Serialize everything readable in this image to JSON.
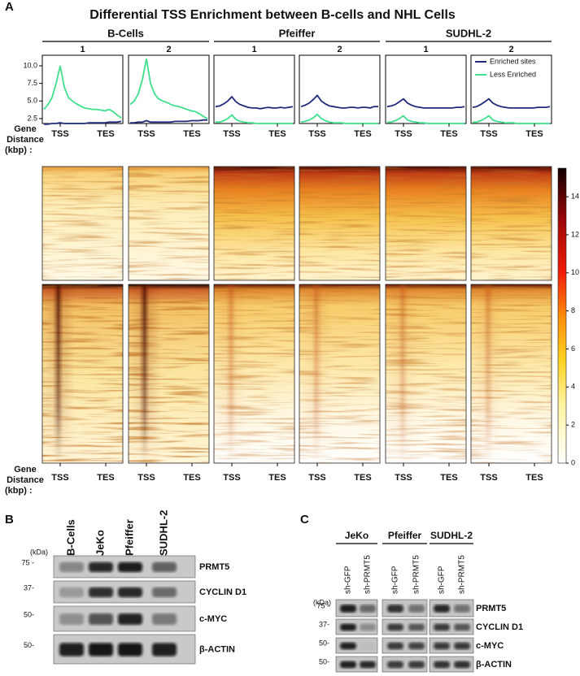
{
  "panel_a": {
    "label": "A",
    "title": "Differential TSS Enrichment between B-cells and NHL Cells",
    "groups": [
      {
        "name": "B-Cells",
        "replicates": [
          "1",
          "2"
        ]
      },
      {
        "name": "Pfeiffer",
        "replicates": [
          "1",
          "2"
        ]
      },
      {
        "name": "SUDHL-2",
        "replicates": [
          "1",
          "2"
        ]
      }
    ],
    "gene_distance_label": [
      "Gene",
      "Distance",
      "(kbp) :"
    ],
    "x_labels": [
      "TSS",
      "TES"
    ],
    "profile_axis": {
      "ylim": [
        1.8,
        11.5
      ],
      "yticks": [
        {
          "value": 10,
          "label": "10.0"
        },
        7.5,
        {
          "value": 5,
          "label": "5.0"
        },
        2.5
      ]
    },
    "legend": [
      {
        "name": "Enriched sites",
        "color": "#1f2a7a"
      },
      {
        "name": "Less Enriched",
        "color": "#3fe08c"
      }
    ],
    "profiles": [
      {
        "series": [
          {
            "values": [
              1.7,
              1.7,
              1.8,
              1.8,
              1.9,
              1.8,
              1.8,
              1.8,
              1.8,
              1.8,
              1.8,
              1.9,
              1.9,
              1.9,
              1.9,
              1.9,
              2.0,
              2.0,
              2.0,
              2.1
            ]
          },
          {
            "values": [
              3.8,
              4.5,
              5.5,
              7.5,
              10.0,
              7.0,
              5.5,
              5.0,
              4.6,
              4.3,
              4.0,
              3.9,
              3.8,
              3.8,
              3.7,
              3.6,
              3.8,
              3.5,
              3.0,
              2.6
            ]
          }
        ]
      },
      {
        "series": [
          {
            "values": [
              1.9,
              1.9,
              2.0,
              2.0,
              2.2,
              2.0,
              2.0,
              2.0,
              2.0,
              2.0,
              2.0,
              2.1,
              2.1,
              2.1,
              2.1,
              2.2,
              2.2,
              2.2,
              2.3,
              2.3
            ]
          },
          {
            "values": [
              4.5,
              5.0,
              6.0,
              8.0,
              11.0,
              7.5,
              6.0,
              5.3,
              5.0,
              4.8,
              4.5,
              4.3,
              4.2,
              4.0,
              3.8,
              3.6,
              3.5,
              3.2,
              2.8,
              2.5
            ]
          }
        ]
      },
      {
        "series": [
          {
            "values": [
              4.2,
              4.3,
              4.6,
              5.0,
              5.6,
              4.9,
              4.5,
              4.3,
              4.1,
              4.0,
              4.0,
              3.9,
              4.0,
              4.1,
              4.0,
              4.0,
              4.1,
              4.0,
              4.1,
              4.2
            ]
          },
          {
            "values": [
              2.0,
              2.0,
              2.2,
              2.5,
              3.0,
              2.4,
              2.1,
              2.0,
              1.9,
              1.9,
              1.8,
              1.8,
              1.8,
              1.8,
              1.8,
              1.8,
              1.8,
              1.8,
              1.8,
              1.8
            ]
          }
        ]
      },
      {
        "series": [
          {
            "values": [
              4.2,
              4.4,
              4.7,
              5.2,
              5.8,
              5.0,
              4.6,
              4.3,
              4.2,
              4.1,
              4.0,
              4.0,
              4.1,
              4.1,
              4.0,
              4.1,
              4.1,
              4.0,
              4.2,
              4.2
            ]
          },
          {
            "values": [
              2.0,
              2.1,
              2.3,
              2.6,
              3.1,
              2.5,
              2.2,
              2.0,
              1.9,
              1.9,
              1.9,
              1.8,
              1.8,
              1.8,
              1.8,
              1.8,
              1.8,
              1.8,
              1.8,
              1.8
            ]
          }
        ]
      },
      {
        "series": [
          {
            "values": [
              4.2,
              4.3,
              4.5,
              4.9,
              5.3,
              4.7,
              4.4,
              4.2,
              4.1,
              4.0,
              4.0,
              4.0,
              4.0,
              4.0,
              4.0,
              4.0,
              4.0,
              4.1,
              4.1,
              4.2
            ]
          },
          {
            "values": [
              2.0,
              2.0,
              2.2,
              2.5,
              2.9,
              2.3,
              2.1,
              2.0,
              1.9,
              1.9,
              1.8,
              1.8,
              1.8,
              1.8,
              1.8,
              1.8,
              1.8,
              1.8,
              1.8,
              1.8
            ]
          }
        ]
      },
      {
        "series": [
          {
            "values": [
              4.1,
              4.2,
              4.5,
              4.9,
              5.3,
              4.7,
              4.4,
              4.2,
              4.1,
              4.0,
              4.0,
              4.0,
              4.0,
              4.0,
              4.0,
              4.0,
              4.1,
              4.1,
              4.1,
              4.2
            ]
          },
          {
            "values": [
              2.0,
              2.0,
              2.2,
              2.5,
              2.9,
              2.3,
              2.1,
              2.0,
              1.9,
              1.9,
              1.9,
              1.8,
              1.8,
              1.8,
              1.8,
              1.8,
              1.8,
              1.8,
              1.8,
              1.8
            ]
          }
        ]
      }
    ],
    "colorbar": {
      "lim": [
        0,
        15.5
      ],
      "ticks": [
        0,
        2,
        4,
        6,
        8,
        10,
        12,
        14
      ]
    }
  },
  "panel_b": {
    "label": "B",
    "kda_label": "(kDa)",
    "lanes": [
      "B-Cells",
      "JeKo",
      "Pfeiffer",
      "SUDHL-2"
    ],
    "rows": [
      {
        "marker": "75 -",
        "protein": "PRMT5"
      },
      {
        "marker": "37-",
        "protein": "CYCLIN D1"
      },
      {
        "marker": "50-",
        "protein": "c-MYC"
      },
      {
        "marker": "50-",
        "protein": "β-ACTIN"
      }
    ]
  },
  "panel_c": {
    "label": "C",
    "kda_label": "(kDa)",
    "groups": [
      {
        "name": "JeKo",
        "lanes": [
          "sh-GFP",
          "sh-PRMT5"
        ]
      },
      {
        "name": "Pfeiffer",
        "lanes": [
          "sh-GFP",
          "sh-PRMT5"
        ]
      },
      {
        "name": "SUDHL-2",
        "lanes": [
          "sh-GFP",
          "sh-PRMT5"
        ]
      }
    ],
    "rows": [
      {
        "marker": "75 -",
        "protein": "PRMT5"
      },
      {
        "marker": "37-",
        "protein": "CYCLIN D1"
      },
      {
        "marker": "50-",
        "protein": "c-MYC"
      },
      {
        "marker": "50-",
        "protein": "β-ACTIN"
      }
    ]
  }
}
